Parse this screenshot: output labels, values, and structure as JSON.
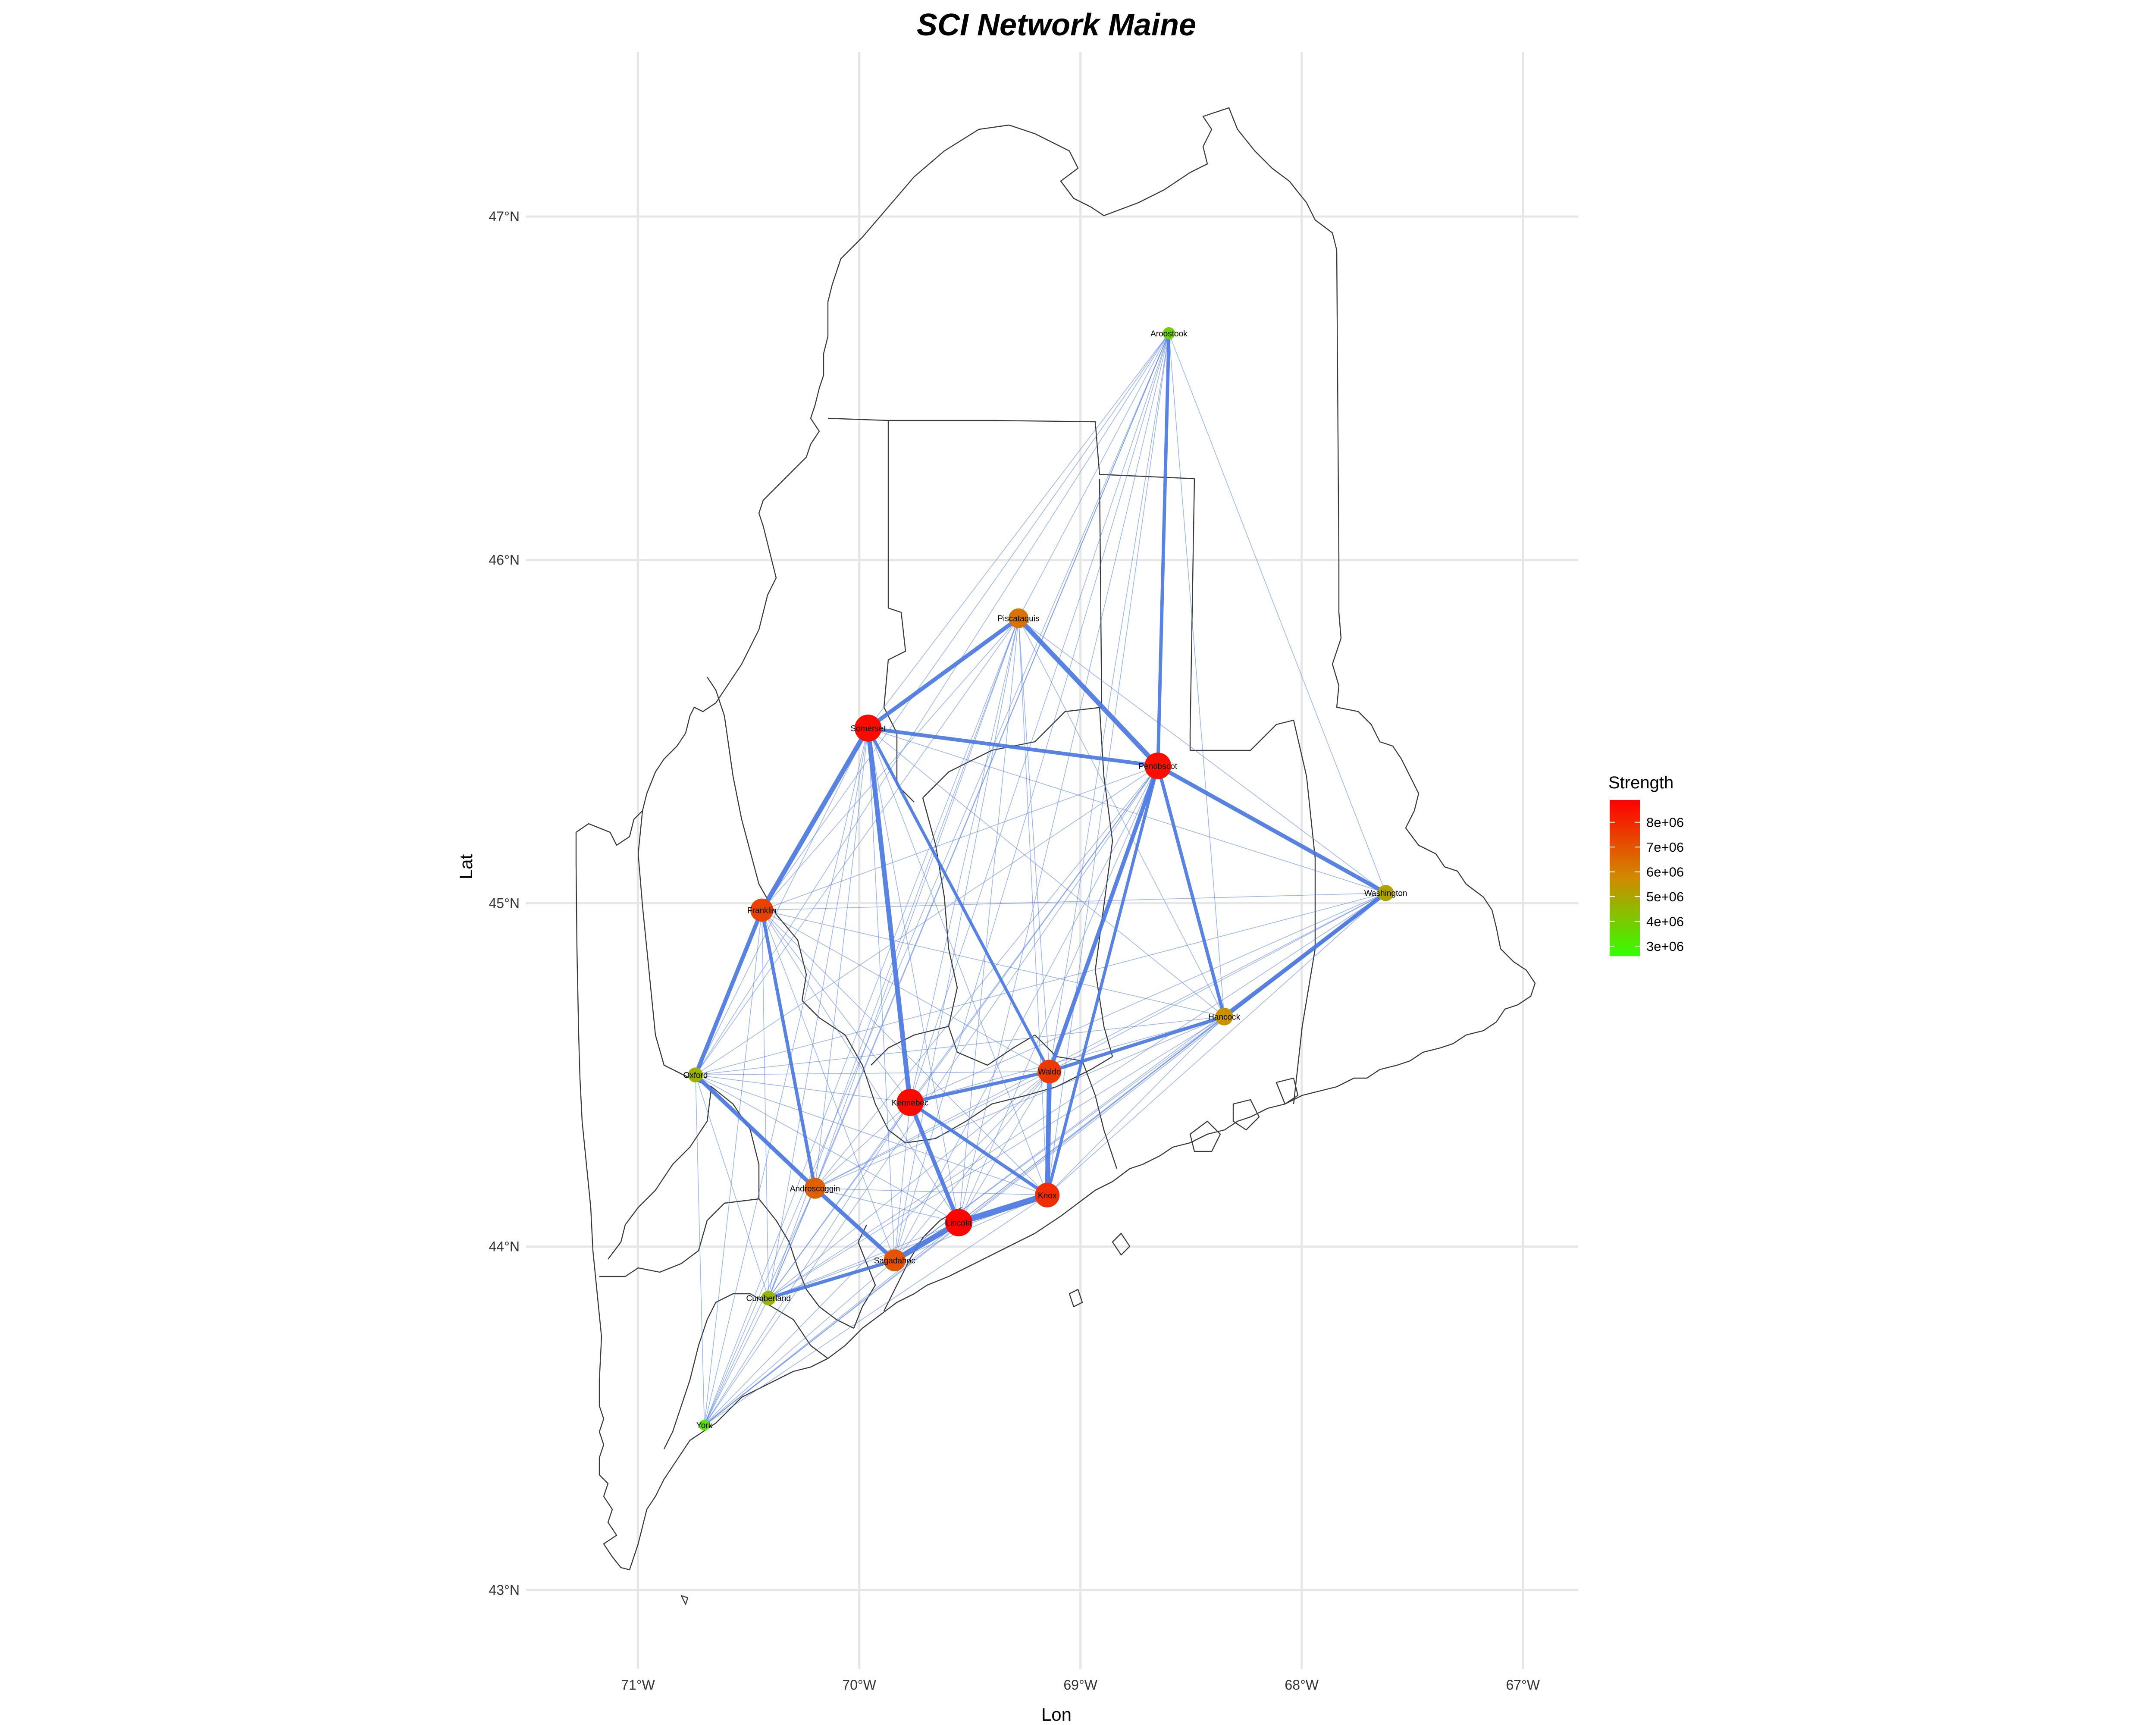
{
  "title": "SCI Network Maine",
  "axes": {
    "xlabel": "Lon",
    "ylabel": "Lat",
    "xlim": [
      -71.35,
      -66.75
    ],
    "ylim": [
      42.77,
      47.48
    ],
    "xticks": [
      {
        "value": -71,
        "label": "71°W"
      },
      {
        "value": -70,
        "label": "70°W"
      },
      {
        "value": -69,
        "label": "69°W"
      },
      {
        "value": -68,
        "label": "68°W"
      },
      {
        "value": -67,
        "label": "67°W"
      }
    ],
    "yticks": [
      {
        "value": 43,
        "label": "43°N"
      },
      {
        "value": 44,
        "label": "44°N"
      },
      {
        "value": 45,
        "label": "45°N"
      },
      {
        "value": 46,
        "label": "46°N"
      },
      {
        "value": 47,
        "label": "47°N"
      }
    ],
    "grid": true
  },
  "legend": {
    "title": "Strength",
    "placement": "right",
    "labels": [
      "8e+06",
      "7e+06",
      "6e+06",
      "5e+06",
      "4e+06",
      "3e+06"
    ],
    "values": [
      8000000,
      7000000,
      6000000,
      5000000,
      4000000,
      3000000
    ],
    "range": [
      2600000,
      8900000
    ],
    "color_low": "#33ff00",
    "color_high": "#ff0000"
  },
  "colors": {
    "edge": "#4a78e0",
    "border": "#3a3a3a",
    "grid": "#e6e6e6"
  },
  "chart_data": {
    "type": "network-map",
    "nodes": [
      {
        "name": "Aroostook",
        "lon": -68.6,
        "lat": 46.66,
        "strength": 3800000
      },
      {
        "name": "Piscataquis",
        "lon": -69.28,
        "lat": 45.83,
        "strength": 6300000
      },
      {
        "name": "Somerset",
        "lon": -69.96,
        "lat": 45.51,
        "strength": 8700000
      },
      {
        "name": "Penobscot",
        "lon": -68.65,
        "lat": 45.4,
        "strength": 8600000
      },
      {
        "name": "Washington",
        "lon": -67.62,
        "lat": 45.03,
        "strength": 5100000
      },
      {
        "name": "Franklin",
        "lon": -70.44,
        "lat": 44.98,
        "strength": 7400000
      },
      {
        "name": "Hancock",
        "lon": -68.35,
        "lat": 44.67,
        "strength": 5600000
      },
      {
        "name": "Oxford",
        "lon": -70.74,
        "lat": 44.5,
        "strength": 4700000
      },
      {
        "name": "Waldo",
        "lon": -69.14,
        "lat": 44.51,
        "strength": 7600000
      },
      {
        "name": "Kennebec",
        "lon": -69.77,
        "lat": 44.42,
        "strength": 8700000
      },
      {
        "name": "Knox",
        "lon": -69.15,
        "lat": 44.15,
        "strength": 7900000
      },
      {
        "name": "Androscoggin",
        "lon": -70.2,
        "lat": 44.17,
        "strength": 6700000
      },
      {
        "name": "Lincoln",
        "lon": -69.55,
        "lat": 44.07,
        "strength": 8800000
      },
      {
        "name": "Sagadahoc",
        "lon": -69.84,
        "lat": 43.96,
        "strength": 7000000
      },
      {
        "name": "Cumberland",
        "lon": -70.41,
        "lat": 43.85,
        "strength": 4600000
      },
      {
        "name": "York",
        "lon": -70.7,
        "lat": 43.48,
        "strength": 3300000
      }
    ],
    "strong_edges": [
      {
        "from": "Kennebec",
        "to": "Somerset",
        "weight": 5
      },
      {
        "from": "Lincoln",
        "to": "Knox",
        "weight": 7
      },
      {
        "from": "Sagadahoc",
        "to": "Lincoln",
        "weight": 6
      },
      {
        "from": "Franklin",
        "to": "Somerset",
        "weight": 5
      },
      {
        "from": "Piscataquis",
        "to": "Penobscot",
        "weight": 5
      },
      {
        "from": "Waldo",
        "to": "Knox",
        "weight": 5
      },
      {
        "from": "Penobscot",
        "to": "Waldo",
        "weight": 4
      },
      {
        "from": "Hancock",
        "to": "Washington",
        "weight": 4
      },
      {
        "from": "Penobscot",
        "to": "Washington",
        "weight": 4
      },
      {
        "from": "Piscataquis",
        "to": "Somerset",
        "weight": 4
      },
      {
        "from": "Franklin",
        "to": "Oxford",
        "weight": 4
      },
      {
        "from": "Oxford",
        "to": "Androscoggin",
        "weight": 4
      },
      {
        "from": "Androscoggin",
        "to": "Sagadahoc",
        "weight": 4
      },
      {
        "from": "Kennebec",
        "to": "Lincoln",
        "weight": 4
      },
      {
        "from": "Somerset",
        "to": "Penobscot",
        "weight": 3.5
      },
      {
        "from": "Aroostook",
        "to": "Penobscot",
        "weight": 3
      },
      {
        "from": "Kennebec",
        "to": "Waldo",
        "weight": 3
      },
      {
        "from": "Waldo",
        "to": "Hancock",
        "weight": 3
      },
      {
        "from": "Sagadahoc",
        "to": "Cumberland",
        "weight": 3
      },
      {
        "from": "Franklin",
        "to": "Androscoggin",
        "weight": 3
      },
      {
        "from": "Penobscot",
        "to": "Hancock",
        "weight": 3
      },
      {
        "from": "Kennebec",
        "to": "Knox",
        "weight": 3
      },
      {
        "from": "Somerset",
        "to": "Waldo",
        "weight": 2.5
      },
      {
        "from": "Penobscot",
        "to": "Knox",
        "weight": 2.5
      }
    ]
  }
}
